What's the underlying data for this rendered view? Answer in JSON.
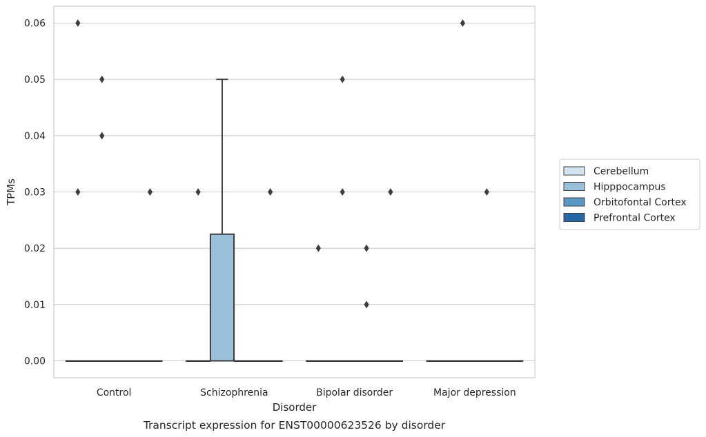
{
  "chart_data": {
    "type": "box",
    "title": "",
    "caption": "Transcript expression for ENST00000623526 by disorder",
    "xlabel": "Disorder",
    "ylabel": "TPMs",
    "ylim": [
      -0.003,
      0.063
    ],
    "yticks": [
      0.0,
      0.01,
      0.02,
      0.03,
      0.04,
      0.05,
      0.06
    ],
    "ytick_labels": [
      "0.00",
      "0.01",
      "0.02",
      "0.03",
      "0.04",
      "0.05",
      "0.06"
    ],
    "grid": true,
    "legend_position": "right",
    "categories": [
      "Control",
      "Schizophrenia",
      "Bipolar disorder",
      "Major depression"
    ],
    "series": [
      {
        "name": "Cerebellum",
        "color": "#d5e4f1",
        "boxes": [
          {
            "q1": 0,
            "median": 0,
            "q3": 0,
            "whisker_low": 0,
            "whisker_high": 0,
            "outliers": [
              0.03,
              0.06
            ]
          },
          {
            "q1": 0,
            "median": 0,
            "q3": 0,
            "whisker_low": 0,
            "whisker_high": 0,
            "outliers": [
              0.03
            ]
          },
          {
            "q1": 0,
            "median": 0,
            "q3": 0,
            "whisker_low": 0,
            "whisker_high": 0,
            "outliers": [
              0.02
            ]
          },
          {
            "q1": 0,
            "median": 0,
            "q3": 0,
            "whisker_low": 0,
            "whisker_high": 0,
            "outliers": []
          }
        ]
      },
      {
        "name": "Hipppocampus",
        "color": "#9ac0da",
        "boxes": [
          {
            "q1": 0,
            "median": 0,
            "q3": 0,
            "whisker_low": 0,
            "whisker_high": 0,
            "outliers": [
              0.04,
              0.05
            ]
          },
          {
            "q1": 0,
            "median": 0,
            "q3": 0.0225,
            "whisker_low": 0,
            "whisker_high": 0.05,
            "outliers": []
          },
          {
            "q1": 0,
            "median": 0,
            "q3": 0,
            "whisker_low": 0,
            "whisker_high": 0,
            "outliers": [
              0.03,
              0.05
            ]
          },
          {
            "q1": 0,
            "median": 0,
            "q3": 0,
            "whisker_low": 0,
            "whisker_high": 0,
            "outliers": [
              0.06
            ]
          }
        ]
      },
      {
        "name": "Orbitofontal Cortex",
        "color": "#5b97c4",
        "boxes": [
          {
            "q1": 0,
            "median": 0,
            "q3": 0,
            "whisker_low": 0,
            "whisker_high": 0,
            "outliers": []
          },
          {
            "q1": 0,
            "median": 0,
            "q3": 0,
            "whisker_low": 0,
            "whisker_high": 0,
            "outliers": []
          },
          {
            "q1": 0,
            "median": 0,
            "q3": 0,
            "whisker_low": 0,
            "whisker_high": 0,
            "outliers": [
              0.01,
              0.02
            ]
          },
          {
            "q1": 0,
            "median": 0,
            "q3": 0,
            "whisker_low": 0,
            "whisker_high": 0,
            "outliers": [
              0.03
            ]
          }
        ]
      },
      {
        "name": "Prefrontal Cortex",
        "color": "#2767a8",
        "boxes": [
          {
            "q1": 0,
            "median": 0,
            "q3": 0,
            "whisker_low": 0,
            "whisker_high": 0,
            "outliers": [
              0.03
            ]
          },
          {
            "q1": 0,
            "median": 0,
            "q3": 0,
            "whisker_low": 0,
            "whisker_high": 0,
            "outliers": [
              0.03
            ]
          },
          {
            "q1": 0,
            "median": 0,
            "q3": 0,
            "whisker_low": 0,
            "whisker_high": 0,
            "outliers": [
              0.03
            ]
          },
          {
            "q1": 0,
            "median": 0,
            "q3": 0,
            "whisker_low": 0,
            "whisker_high": 0,
            "outliers": []
          }
        ]
      }
    ]
  }
}
